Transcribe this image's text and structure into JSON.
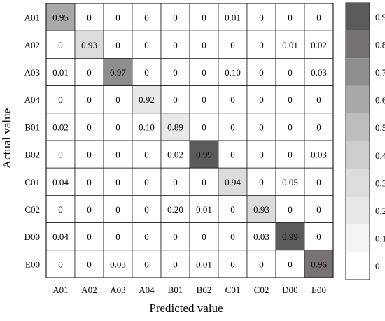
{
  "chart_data": {
    "type": "heatmap",
    "title": "",
    "xlabel": "Predicted value",
    "ylabel": "Actual value",
    "x_categories": [
      "A01",
      "A02",
      "A03",
      "A04",
      "B01",
      "B02",
      "C01",
      "C02",
      "D00",
      "E00"
    ],
    "y_categories": [
      "A01",
      "A02",
      "A03",
      "A04",
      "B01",
      "B02",
      "C01",
      "C02",
      "D00",
      "E00"
    ],
    "values": [
      [
        "0.95",
        "0",
        "0",
        "0",
        "0",
        "0",
        "0.01",
        "0",
        "0",
        "0"
      ],
      [
        "0",
        "0.93",
        "0",
        "0",
        "0",
        "0",
        "0",
        "0",
        "0.01",
        "0.02"
      ],
      [
        "0.01",
        "0",
        "0.97",
        "0",
        "0",
        "0",
        "0.10",
        "0",
        "0",
        "0.03"
      ],
      [
        "0",
        "0",
        "0",
        "0.92",
        "0",
        "0",
        "0",
        "0",
        "0",
        "0"
      ],
      [
        "0.02",
        "0",
        "0",
        "0.10",
        "0.89",
        "0",
        "0",
        "0",
        "0",
        "0"
      ],
      [
        "0",
        "0",
        "0",
        "0",
        "0.02",
        "0.99",
        "0",
        "0",
        "0",
        "0.03"
      ],
      [
        "0.04",
        "0",
        "0",
        "0",
        "0",
        "0",
        "0.94",
        "0",
        "0.05",
        "0"
      ],
      [
        "0",
        "0",
        "0",
        "0",
        "0.20",
        "0.01",
        "0",
        "0.93",
        "0",
        "0"
      ],
      [
        "0.04",
        "0",
        "0",
        "0",
        "0",
        "0",
        "0",
        "0.03",
        "0.99",
        "0"
      ],
      [
        "0",
        "0",
        "0.03",
        "0",
        "0",
        "0.01",
        "0",
        "0",
        "0",
        "0.96"
      ]
    ],
    "cell_shade_levels": [
      [
        0.6,
        0,
        0,
        0,
        0,
        0,
        0,
        0,
        0,
        0
      ],
      [
        0,
        0.3,
        0,
        0,
        0,
        0,
        0,
        0,
        0,
        0
      ],
      [
        0,
        0,
        0.7,
        0,
        0,
        0,
        0.08,
        0,
        0,
        0
      ],
      [
        0,
        0,
        0,
        0.2,
        0,
        0,
        0,
        0,
        0,
        0
      ],
      [
        0,
        0,
        0,
        0.08,
        0.2,
        0,
        0,
        0,
        0,
        0
      ],
      [
        0,
        0,
        0,
        0,
        0,
        0.9,
        0,
        0,
        0,
        0
      ],
      [
        0,
        0,
        0,
        0,
        0,
        0,
        0.3,
        0,
        0,
        0
      ],
      [
        0,
        0,
        0,
        0,
        0.08,
        0,
        0,
        0.3,
        0,
        0
      ],
      [
        0,
        0,
        0,
        0,
        0,
        0,
        0,
        0,
        0.9,
        0
      ],
      [
        0,
        0,
        0,
        0,
        0,
        0,
        0,
        0,
        0,
        0.8
      ]
    ],
    "colorbar": {
      "ticks": [
        "0",
        "0.1",
        "0.2",
        "0.3",
        "0.4",
        "0.5",
        "0.6",
        "0.7",
        "0.8",
        "0.9"
      ],
      "levels": [
        0,
        0.1,
        0.2,
        0.3,
        0.4,
        0.5,
        0.6,
        0.7,
        0.8,
        0.9
      ],
      "range": [
        0,
        1
      ],
      "level_colors": [
        "#ffffff",
        "#f4f4f4",
        "#e8e8e8",
        "#dcdcdc",
        "#cdcdcd",
        "#bdbdbd",
        "#a9a9a9",
        "#8e8e8e",
        "#787272",
        "#5a5a5a"
      ]
    },
    "grid": true,
    "legend": "colorbar-right"
  }
}
